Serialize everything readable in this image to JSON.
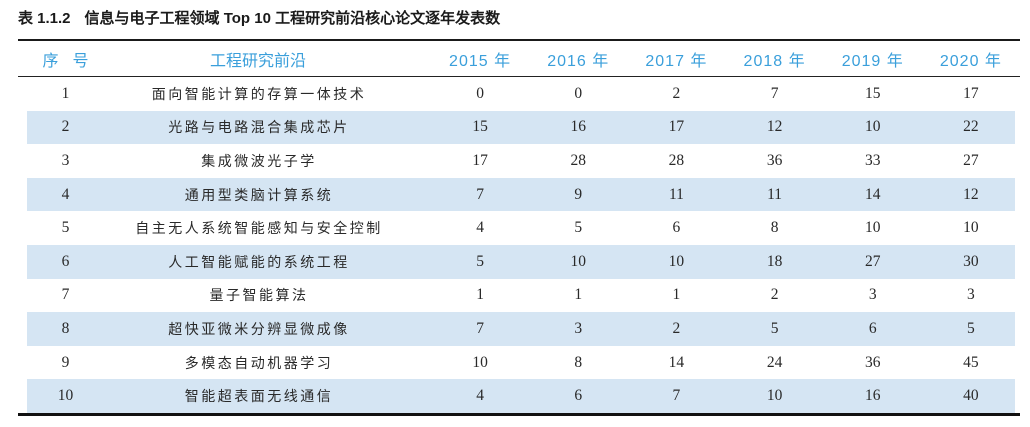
{
  "caption": {
    "label": "表 1.1.2",
    "title": "信息与电子工程领域 Top 10 工程研究前沿核心论文逐年发表数"
  },
  "table": {
    "columns": [
      "序号",
      "工程研究前沿",
      "2015 年",
      "2016 年",
      "2017 年",
      "2018 年",
      "2019 年",
      "2020 年"
    ],
    "rows": [
      {
        "no": "1",
        "front": "面向智能计算的存算一体技术",
        "values": [
          "0",
          "0",
          "2",
          "7",
          "15",
          "17"
        ]
      },
      {
        "no": "2",
        "front": "光路与电路混合集成芯片",
        "values": [
          "15",
          "16",
          "17",
          "12",
          "10",
          "22"
        ]
      },
      {
        "no": "3",
        "front": "集成微波光子学",
        "values": [
          "17",
          "28",
          "28",
          "36",
          "33",
          "27"
        ]
      },
      {
        "no": "4",
        "front": "通用型类脑计算系统",
        "values": [
          "7",
          "9",
          "11",
          "11",
          "14",
          "12"
        ]
      },
      {
        "no": "5",
        "front": "自主无人系统智能感知与安全控制",
        "values": [
          "4",
          "5",
          "6",
          "8",
          "10",
          "10"
        ]
      },
      {
        "no": "6",
        "front": "人工智能赋能的系统工程",
        "values": [
          "5",
          "10",
          "10",
          "18",
          "27",
          "30"
        ]
      },
      {
        "no": "7",
        "front": "量子智能算法",
        "values": [
          "1",
          "1",
          "1",
          "2",
          "3",
          "3"
        ]
      },
      {
        "no": "8",
        "front": "超快亚微米分辨显微成像",
        "values": [
          "7",
          "3",
          "2",
          "5",
          "6",
          "5"
        ]
      },
      {
        "no": "9",
        "front": "多模态自动机器学习",
        "values": [
          "10",
          "8",
          "14",
          "24",
          "36",
          "45"
        ]
      },
      {
        "no": "10",
        "front": "智能超表面无线通信",
        "values": [
          "4",
          "6",
          "7",
          "10",
          "16",
          "40"
        ]
      }
    ]
  },
  "colors": {
    "header_text": "#3A9FDB",
    "stripe_row": "#D5E5F3",
    "rule": "#1A1A1A",
    "body_text": "#292929"
  }
}
